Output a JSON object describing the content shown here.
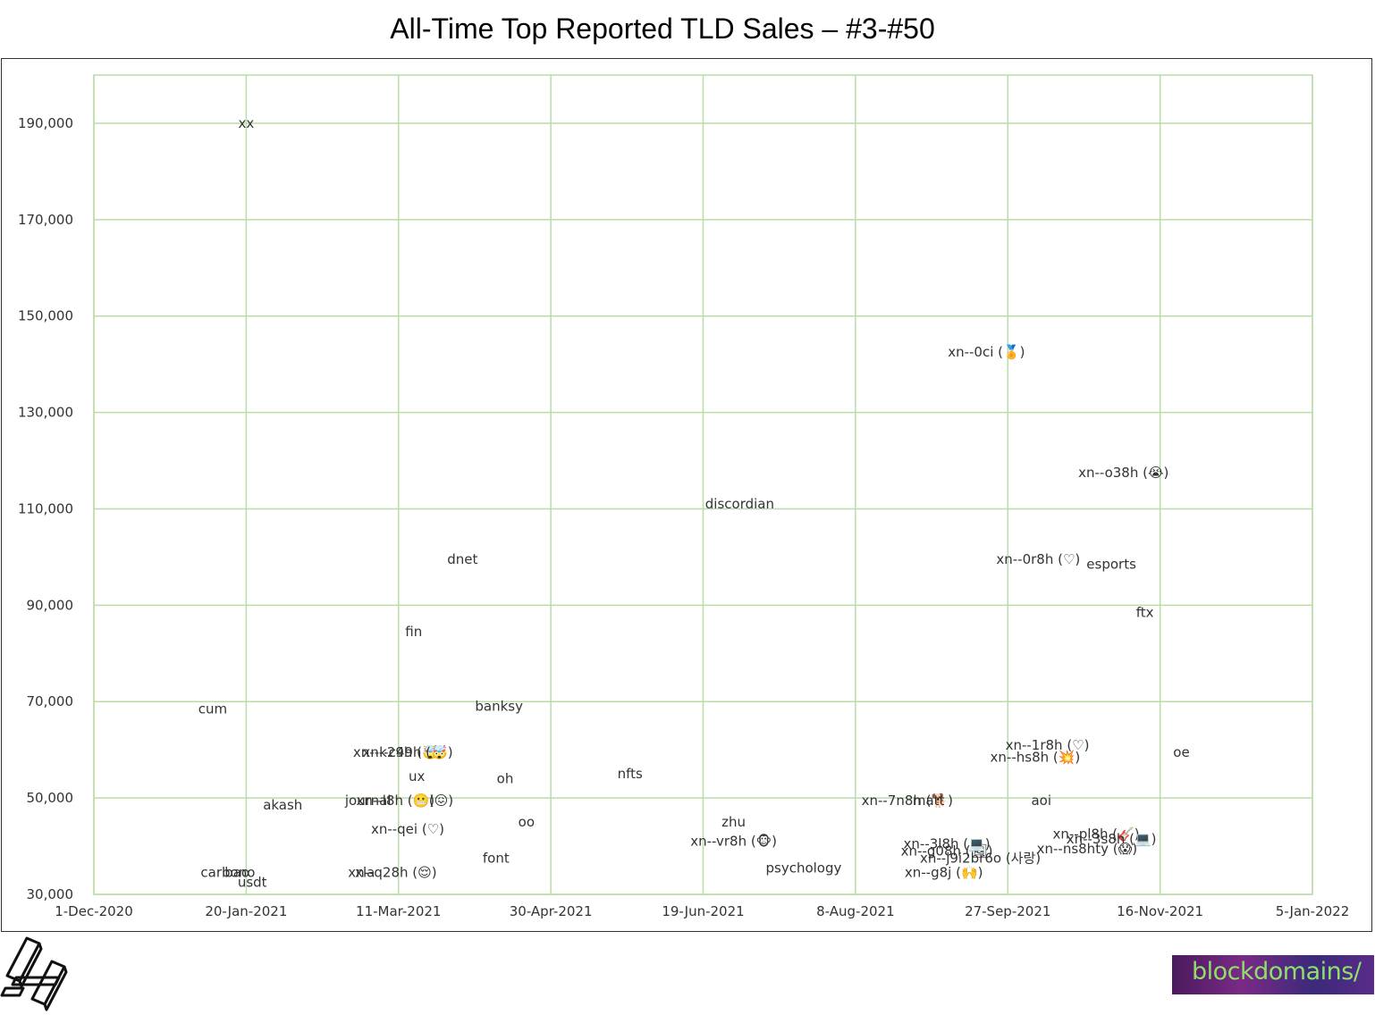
{
  "chart_data": {
    "type": "scatter",
    "title": "All-Time Top Reported TLD Sales – #3-#50",
    "xlabel": "",
    "ylabel": "",
    "x_ticks": [
      "1-Dec-2020",
      "20-Jan-2021",
      "11-Mar-2021",
      "30-Apr-2021",
      "19-Jun-2021",
      "8-Aug-2021",
      "27-Sep-2021",
      "16-Nov-2021",
      "5-Jan-2022"
    ],
    "y_ticks": [
      "30,000",
      "50,000",
      "70,000",
      "90,000",
      "110,000",
      "130,000",
      "150,000",
      "170,000",
      "190,000"
    ],
    "xlim": [
      "2020-12-01",
      "2022-01-05"
    ],
    "ylim": [
      30000,
      200000
    ],
    "grid": true,
    "points": [
      {
        "label": "xx",
        "x": "2021-01-20",
        "y": 190000
      },
      {
        "label": "cum",
        "x": "2021-01-09",
        "y": 68500
      },
      {
        "label": "akash",
        "x": "2021-02-01",
        "y": 48500
      },
      {
        "label": "carbono",
        "x": "2021-01-14",
        "y": 34500
      },
      {
        "label": "bao",
        "x": "2021-01-17",
        "y": 34500
      },
      {
        "label": "usdt",
        "x": "2021-01-22",
        "y": 32500
      },
      {
        "label": "xn--k29h (🤯)",
        "x": "2021-03-11",
        "y": 59500
      },
      {
        "label": "xn--c49h (🤯)",
        "x": "2021-03-14",
        "y": 59500
      },
      {
        "label": "ux",
        "x": "2021-03-17",
        "y": 54500
      },
      {
        "label": "journal",
        "x": "2021-03-01",
        "y": 49500
      },
      {
        "label": "xn--l8h (😬)",
        "x": "2021-03-10",
        "y": 49500
      },
      {
        "label": "(😖)",
        "x": "2021-03-25",
        "y": 49500
      },
      {
        "label": "xn--qei (♡)",
        "x": "2021-03-14",
        "y": 43500
      },
      {
        "label": "xn--q28h (😌)",
        "x": "2021-03-09",
        "y": 34500
      },
      {
        "label": "xla",
        "x": "2021-02-28",
        "y": 34500
      },
      {
        "label": "fin",
        "x": "2021-03-16",
        "y": 84500
      },
      {
        "label": "dnet",
        "x": "2021-04-01",
        "y": 99500
      },
      {
        "label": "banksy",
        "x": "2021-04-13",
        "y": 69000
      },
      {
        "label": "oh",
        "x": "2021-04-15",
        "y": 54000
      },
      {
        "label": "oo",
        "x": "2021-04-22",
        "y": 45000
      },
      {
        "label": "font",
        "x": "2021-04-12",
        "y": 37500
      },
      {
        "label": "nfts",
        "x": "2021-05-26",
        "y": 55000
      },
      {
        "label": "discordian",
        "x": "2021-07-01",
        "y": 111000
      },
      {
        "label": "zhu",
        "x": "2021-06-29",
        "y": 45000
      },
      {
        "label": "xn--vr8h (🐵)",
        "x": "2021-06-29",
        "y": 41000
      },
      {
        "label": "psychology",
        "x": "2021-07-22",
        "y": 35500
      },
      {
        "label": "xn--7n8h (🐕)",
        "x": "2021-08-25",
        "y": 49500
      },
      {
        "label": "matt",
        "x": "2021-09-01",
        "y": 49500
      },
      {
        "label": "xn--0ci (🏅)",
        "x": "2021-09-20",
        "y": 142500
      },
      {
        "label": "xn--o38h (😭)",
        "x": "2021-11-04",
        "y": 117500
      },
      {
        "label": "xn--0r8h (♡)",
        "x": "2021-10-07",
        "y": 99500
      },
      {
        "label": "esports",
        "x": "2021-10-31",
        "y": 98500
      },
      {
        "label": "ftx",
        "x": "2021-11-11",
        "y": 88500
      },
      {
        "label": "xn--1r8h (♡)",
        "x": "2021-10-10",
        "y": 61000
      },
      {
        "label": "xn--hs8h (💥)",
        "x": "2021-10-06",
        "y": 58500
      },
      {
        "label": "oe",
        "x": "2021-11-23",
        "y": 59500
      },
      {
        "label": "aoi",
        "x": "2021-10-08",
        "y": 49500
      },
      {
        "label": "xn--pl8h (🎸)",
        "x": "2021-10-26",
        "y": 42500
      },
      {
        "label": "xn--3s8h (💻)",
        "x": "2021-10-31",
        "y": 41500
      },
      {
        "label": "xn--ns8hty (😱)",
        "x": "2021-10-23",
        "y": 39500
      },
      {
        "label": "xn--g08h (🖼)",
        "x": "2021-09-07",
        "y": 39000
      },
      {
        "label": "xn--j9i2br6o (사랑)",
        "x": "2021-09-18",
        "y": 37500
      },
      {
        "label": "xn--g8j (🙌)",
        "x": "2021-09-06",
        "y": 34500
      },
      {
        "label": "xn--3l8h (💻)",
        "x": "2021-09-07",
        "y": 40500
      }
    ]
  },
  "logos": {
    "left": "h-icon",
    "right_text": "blockdomains/"
  }
}
